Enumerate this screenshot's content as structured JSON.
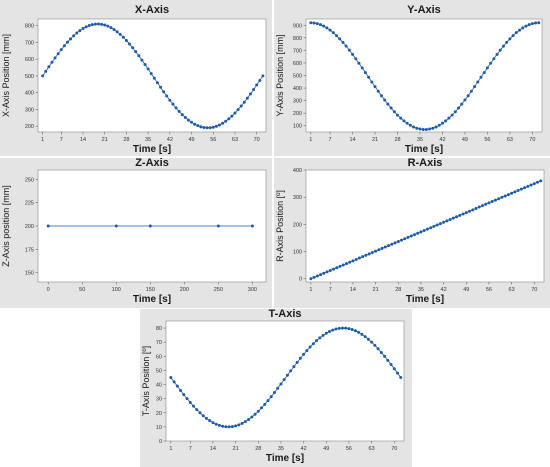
{
  "chart_data": [
    {
      "type": "scatter",
      "title": "X-Axis",
      "xlabel": "Time [s]",
      "ylabel": "X-Axis Position [mm]",
      "x_ticks": [
        1,
        7,
        14,
        21,
        28,
        35,
        42,
        49,
        56,
        63,
        70
      ],
      "y_ticks": [
        200,
        300,
        400,
        500,
        600,
        700,
        800
      ],
      "xlim": [
        -0.5,
        73
      ],
      "ylim": [
        165,
        840
      ],
      "connected": true,
      "grid": false,
      "series": [
        {
          "color": "#1f5ba6",
          "x_start": 1,
          "x_end": 72,
          "step": 1,
          "y_formula": "500 + 310*sin(2*pi*(t-1)/71)"
        }
      ]
    },
    {
      "type": "scatter",
      "title": "Y-Axis",
      "xlabel": "Time [s]",
      "ylabel": "Y-Axis Position [mm]",
      "x_ticks": [
        1,
        7,
        14,
        21,
        28,
        35,
        42,
        49,
        56,
        63,
        70
      ],
      "y_ticks": [
        100,
        200,
        300,
        400,
        500,
        600,
        700,
        800,
        900
      ],
      "xlim": [
        -0.5,
        73
      ],
      "ylim": [
        50,
        950
      ],
      "connected": true,
      "grid": false,
      "series": [
        {
          "color": "#1f5ba6",
          "x_start": 1,
          "x_end": 72,
          "step": 1,
          "y_formula": "495 + 425*cos(2*pi*(t-1)/71)"
        }
      ]
    },
    {
      "type": "line",
      "title": "Z-Axis",
      "xlabel": "Time [s]",
      "ylabel": "Z-Axis position [mm]",
      "x_ticks": [
        0,
        50,
        100,
        150,
        200,
        250,
        300
      ],
      "y_ticks": [
        150,
        175,
        200,
        225,
        250
      ],
      "xlim": [
        -15,
        320
      ],
      "ylim": [
        140,
        260
      ],
      "grid": false,
      "series": [
        {
          "color": "#1f5ba6",
          "x": [
            0,
            100,
            150,
            250,
            300
          ],
          "y": [
            200,
            200,
            200,
            200,
            200
          ]
        }
      ]
    },
    {
      "type": "scatter",
      "title": "R-Axis",
      "xlabel": "Time [s]",
      "ylabel": "R-Axis Position [º]",
      "x_ticks": [
        1,
        7,
        14,
        21,
        28,
        35,
        42,
        49,
        56,
        63,
        70
      ],
      "y_ticks": [
        0,
        100,
        200,
        300,
        400
      ],
      "xlim": [
        -0.5,
        73
      ],
      "ylim": [
        -12,
        400
      ],
      "connected": true,
      "grid": false,
      "series": [
        {
          "color": "#1f5ba6",
          "x_start": 1,
          "x_end": 72,
          "step": 1,
          "y_formula": "360*(t-1)/71"
        }
      ]
    },
    {
      "type": "scatter",
      "title": "T-Axis",
      "xlabel": "Time [s]",
      "ylabel": "T-Axis Position [º]",
      "x_ticks": [
        1,
        7,
        14,
        21,
        28,
        35,
        42,
        49,
        56,
        63,
        70
      ],
      "y_ticks": [
        0,
        10,
        20,
        30,
        40,
        50,
        60,
        70,
        80
      ],
      "xlim": [
        -0.5,
        73
      ],
      "ylim": [
        0,
        85
      ],
      "connected": true,
      "grid": false,
      "series": [
        {
          "color": "#1f5ba6",
          "x_start": 1,
          "x_end": 72,
          "step": 1,
          "y_formula": "45 - 35*sin(2*pi*(t-1)/71)"
        }
      ]
    }
  ]
}
